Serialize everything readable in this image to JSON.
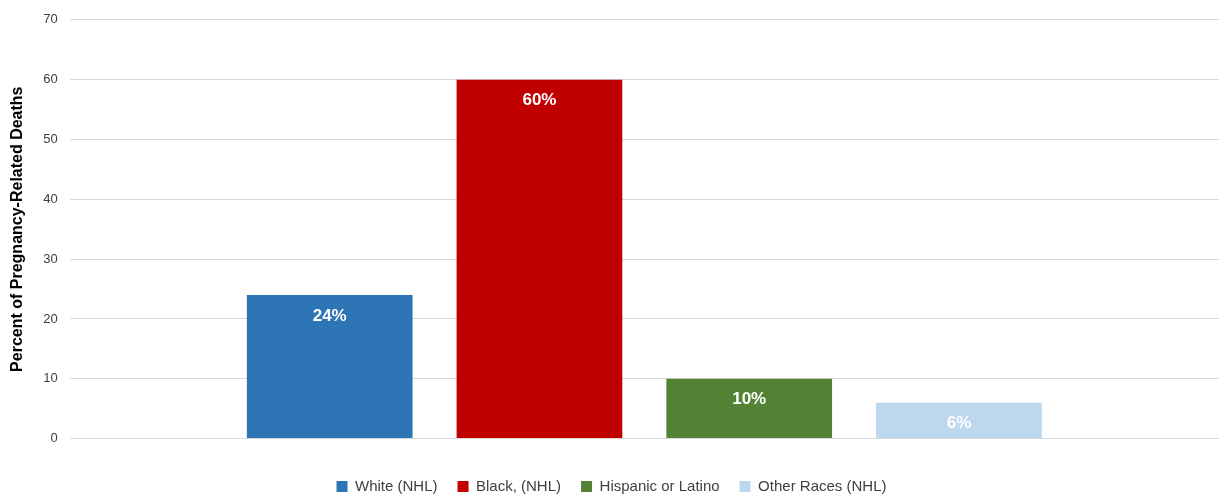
{
  "chart_data": {
    "type": "bar",
    "ylabel": "Percent of Pregnancy-Related Deaths",
    "categories": [
      null
    ],
    "series": [
      {
        "name": "White (NHL)",
        "color": "#2e75b6",
        "values": [
          24
        ],
        "value_labels": [
          "24%"
        ]
      },
      {
        "name": "Black, (NHL)",
        "color": "#c00000",
        "values": [
          60
        ],
        "value_labels": [
          "60%"
        ]
      },
      {
        "name": "Hispanic or Latino",
        "color": "#548235",
        "values": [
          10
        ],
        "value_labels": [
          "10%"
        ]
      },
      {
        "name": "Other Races (NHL)",
        "color": "#bdd7ee",
        "values": [
          6
        ],
        "value_labels": [
          "6%"
        ]
      }
    ],
    "ylim": [
      0,
      70
    ],
    "yticks": [
      0,
      10,
      20,
      30,
      40,
      50,
      60,
      70
    ],
    "grid": "y",
    "legend": "bottom"
  }
}
